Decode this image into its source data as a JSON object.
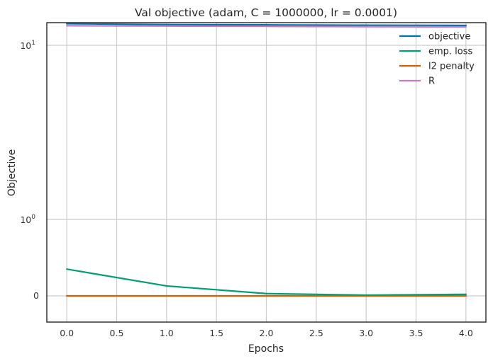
{
  "chart_data": {
    "type": "line",
    "title": "Val objective (adam, C = 1000000, lr = 0.0001)",
    "xlabel": "Epochs",
    "ylabel": "Objective",
    "xlim": [
      -0.2,
      4.2
    ],
    "xticks": [
      0.0,
      0.5,
      1.0,
      1.5,
      2.0,
      2.5,
      3.0,
      3.5,
      4.0
    ],
    "xtick_labels": [
      "0.0",
      "0.5",
      "1.0",
      "1.5",
      "2.0",
      "2.5",
      "3.0",
      "3.5",
      "4.0"
    ],
    "yscale": "symlog",
    "ylim": [
      -0.35,
      13.5
    ],
    "yticks": [
      0,
      1,
      10
    ],
    "grid": true,
    "legend_position": "top-right",
    "x": [
      0,
      1,
      2,
      3,
      4
    ],
    "series": [
      {
        "name": "objective",
        "color": "#0173b2",
        "values": [
          13.3,
          13.15,
          13.1,
          13.05,
          13.0
        ]
      },
      {
        "name": "emp. loss",
        "color": "#029e73",
        "values": [
          0.35,
          0.13,
          0.03,
          0.01,
          0.02
        ]
      },
      {
        "name": "l2 penalty",
        "color": "#d55e00",
        "values": [
          0.0,
          0.0,
          0.0,
          0.0,
          0.0
        ]
      },
      {
        "name": "R",
        "color": "#cc78bc",
        "values": [
          12.95,
          12.9,
          12.85,
          12.8,
          12.75
        ]
      }
    ]
  },
  "labels": {
    "ytick_0": "0",
    "ytick_1_base": "10",
    "ytick_1_exp": "0",
    "ytick_10_base": "10",
    "ytick_10_exp": "1"
  }
}
